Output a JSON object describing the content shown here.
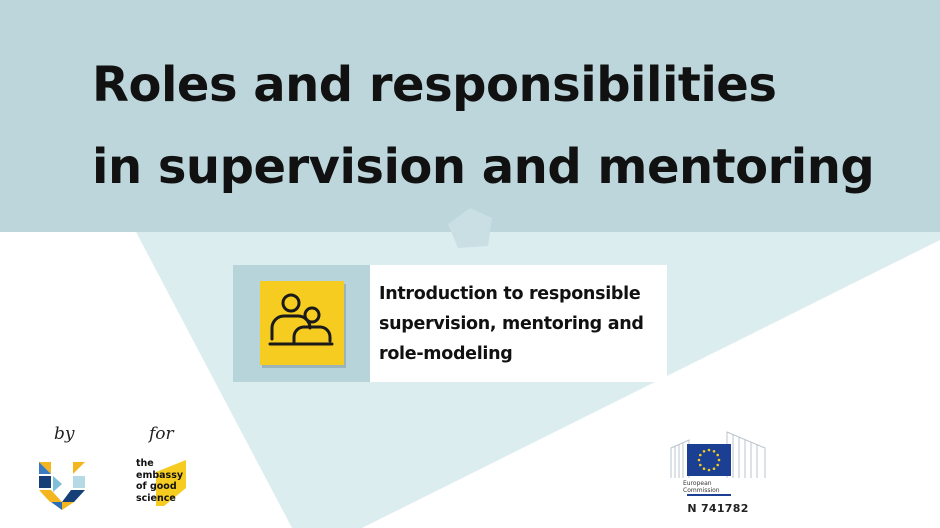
{
  "title": {
    "line1": "Roles and responsibilities",
    "line2": "in supervision and mentoring"
  },
  "module": {
    "icon": "mentor-mentee-icon",
    "line1": "Introduction to responsible",
    "line2": "supervision, mentoring and",
    "line3": "role-modeling"
  },
  "credits": {
    "by_label": "by",
    "for_label": "for",
    "by_logo": "vu-amsterdam-logo",
    "for_logo": {
      "line1": "the",
      "line2": "embassy",
      "line3": "of good",
      "line4": "science"
    },
    "funder": {
      "logo": "european-commission-logo",
      "caption_line1": "European",
      "caption_line2": "Commission",
      "grant": "N 741782"
    }
  },
  "colors": {
    "header_band": "#bcd6dc",
    "diagonal_band": "#dcedf0",
    "icon_panel": "#b7d4da",
    "icon_fill": "#f5cc1f",
    "text": "#111111"
  }
}
